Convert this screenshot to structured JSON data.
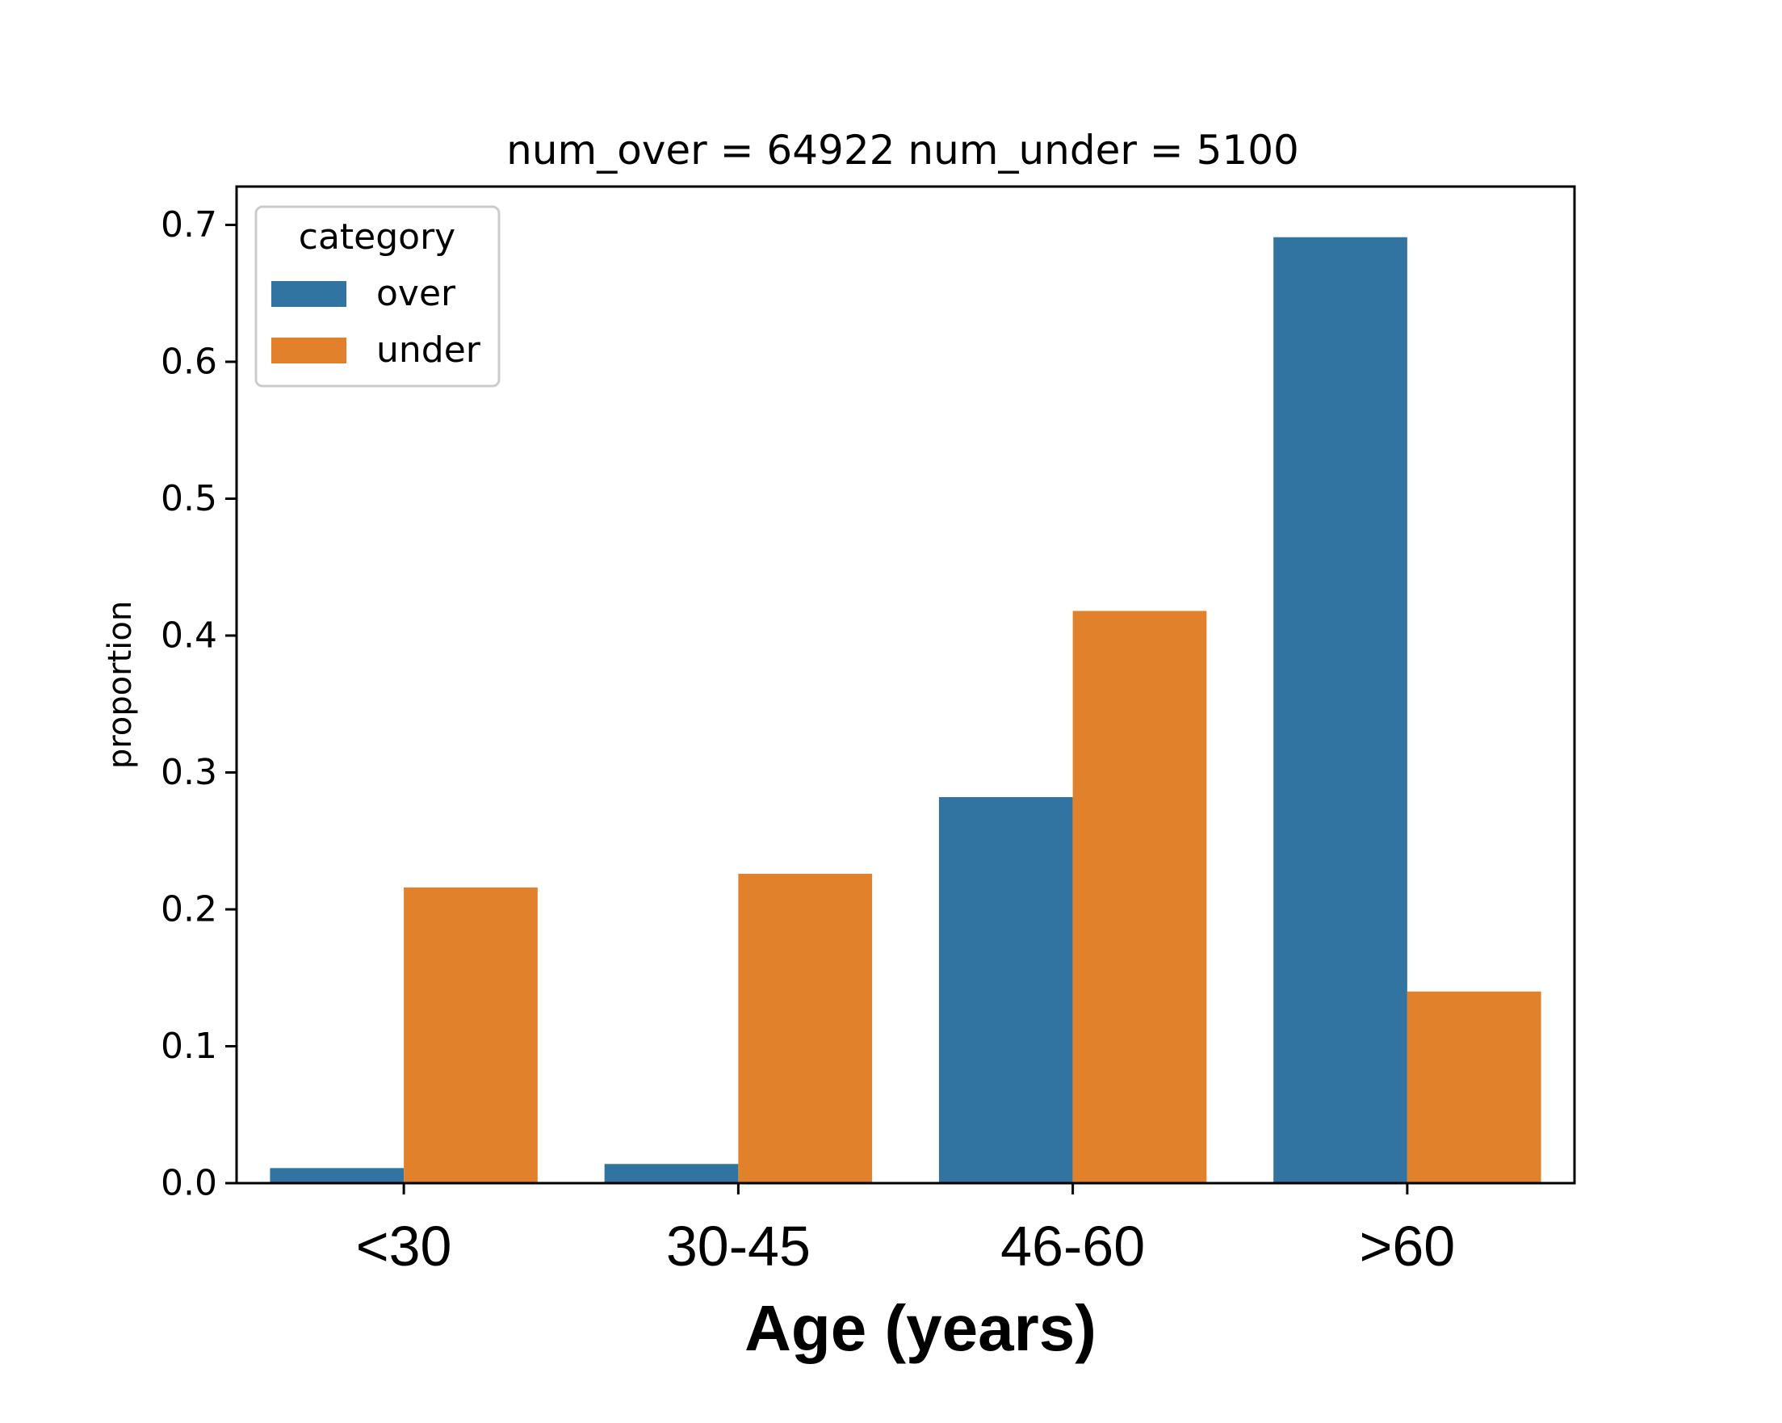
{
  "chart_data": {
    "type": "bar",
    "title": "num_over = 64922  num_under = 5100",
    "xlabel": "Age (years)",
    "ylabel": "proportion",
    "categories": [
      "<30",
      "30-45",
      "46-60",
      ">60"
    ],
    "series": [
      {
        "name": "over",
        "color": "#3274a1",
        "values": [
          0.011,
          0.014,
          0.282,
          0.691
        ]
      },
      {
        "name": "under",
        "color": "#e1812c",
        "values": [
          0.216,
          0.226,
          0.418,
          0.14
        ]
      }
    ],
    "ylim": [
      0,
      0.728
    ],
    "yticks": [
      0.0,
      0.1,
      0.2,
      0.3,
      0.4,
      0.5,
      0.6,
      0.7
    ],
    "ytick_labels": [
      "0.0",
      "0.1",
      "0.2",
      "0.3",
      "0.4",
      "0.5",
      "0.6",
      "0.7"
    ],
    "legend": {
      "title": "category",
      "position": "upper-left"
    },
    "grid": false
  }
}
